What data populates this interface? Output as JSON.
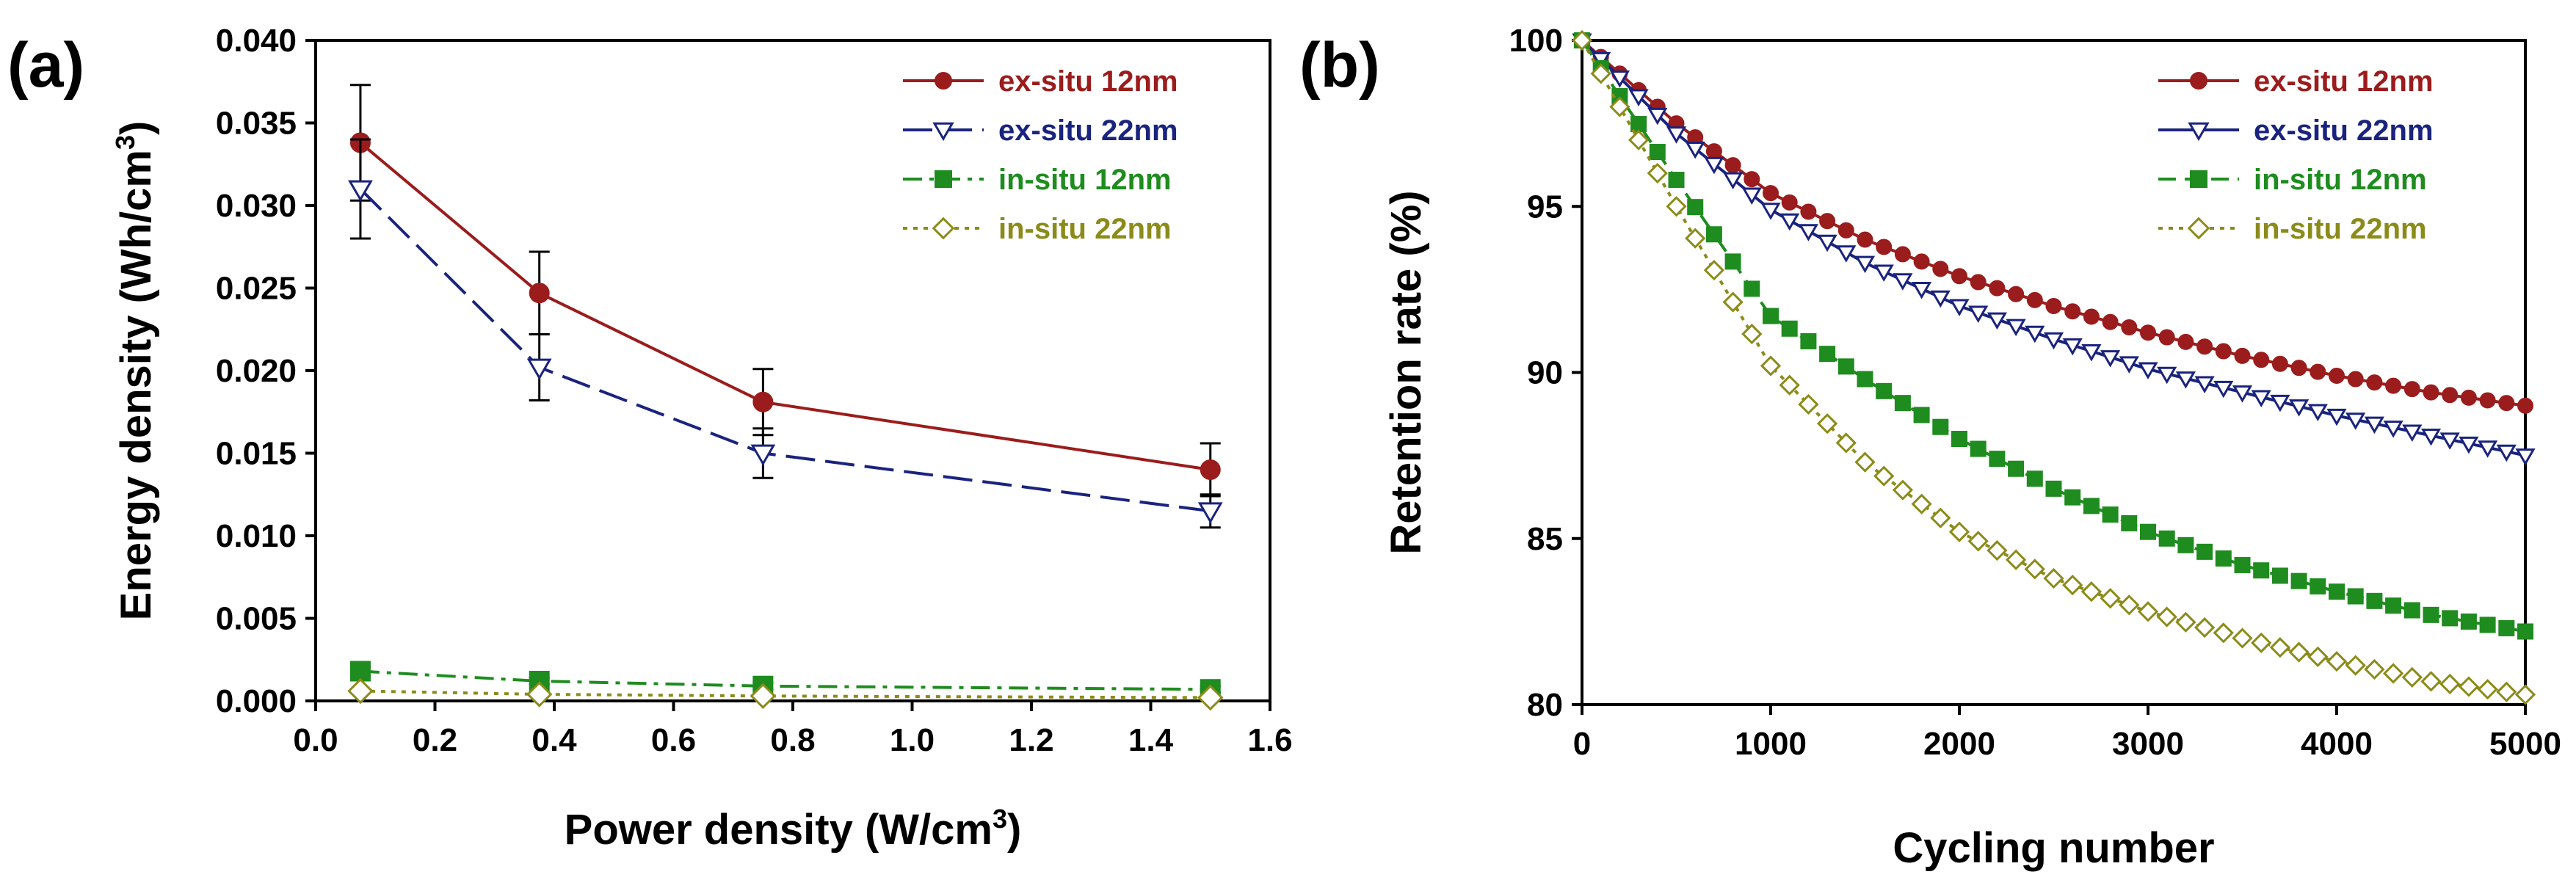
{
  "chart_data": [
    {
      "type": "line",
      "panel_label": "(a)",
      "xlabel": "Power density (W/cm",
      "xlabel_sup": "3",
      "xlabel_end": ")",
      "ylabel": "Energy density (Wh/cm",
      "ylabel_sup": "3",
      "ylabel_end": ")",
      "xlim": [
        0.0,
        1.6
      ],
      "ylim": [
        0.0,
        0.04
      ],
      "xticks": [
        "0.0",
        "0.2",
        "0.4",
        "0.6",
        "0.8",
        "1.0",
        "1.2",
        "1.4",
        "1.6"
      ],
      "yticks": [
        "0.000",
        "0.005",
        "0.010",
        "0.015",
        "0.020",
        "0.025",
        "0.030",
        "0.035",
        "0.040"
      ],
      "legend_position": "top-right",
      "series": [
        {
          "name": "ex-situ 12nm",
          "color": "#9b1c1c",
          "marker": "circle",
          "line": "solid",
          "x": [
            0.075,
            0.375,
            0.75,
            1.5
          ],
          "y": [
            0.0338,
            0.0247,
            0.0181,
            0.014
          ],
          "err": [
            0.0035,
            0.0025,
            0.002,
            0.0016
          ]
        },
        {
          "name": "ex-situ 22nm",
          "color": "#1a237e",
          "marker": "triangle-down-open",
          "line": "long-dash",
          "x": [
            0.075,
            0.375,
            0.75,
            1.5
          ],
          "y": [
            0.031,
            0.0202,
            0.015,
            0.0115
          ],
          "err": [
            0.003,
            0.002,
            0.0015,
            0.001
          ]
        },
        {
          "name": "in-situ 12nm",
          "color": "#1e8c1e",
          "marker": "square",
          "line": "dash-dot",
          "x": [
            0.075,
            0.375,
            0.75,
            1.5
          ],
          "y": [
            0.0018,
            0.0012,
            0.0009,
            0.0007
          ],
          "err": [
            0.0003,
            0.0002,
            0.0002,
            0.0002
          ]
        },
        {
          "name": "in-situ 22nm",
          "color": "#8b8b1a",
          "marker": "diamond-open",
          "line": "dotted",
          "x": [
            0.075,
            0.375,
            0.75,
            1.5
          ],
          "y": [
            0.0006,
            0.0004,
            0.0003,
            0.0002
          ],
          "err": [
            0.0001,
            0.0001,
            0.0001,
            0.0001
          ]
        }
      ]
    },
    {
      "type": "line",
      "panel_label": "(b)",
      "xlabel": "Cycling number",
      "ylabel": "Retention rate (%)",
      "xlim": [
        0,
        5000
      ],
      "ylim": [
        80,
        100
      ],
      "xticks": [
        "0",
        "1000",
        "2000",
        "3000",
        "4000",
        "5000"
      ],
      "yticks": [
        "80",
        "85",
        "90",
        "95",
        "100"
      ],
      "legend_position": "top-right",
      "series": [
        {
          "name": "ex-situ 12nm",
          "color": "#9b1c1c",
          "marker": "circle",
          "line": "solid",
          "x": [
            0,
            500,
            1000,
            1500,
            2000,
            2500,
            3000,
            3500,
            4000,
            4500,
            5000
          ],
          "y": [
            100,
            97.5,
            95.4,
            94.0,
            92.9,
            92.0,
            91.2,
            90.5,
            89.9,
            89.4,
            89.0
          ]
        },
        {
          "name": "ex-situ 22nm",
          "color": "#1a237e",
          "marker": "triangle-down-open",
          "line": "solid",
          "x": [
            0,
            500,
            1000,
            1500,
            2000,
            2500,
            3000,
            3500,
            4000,
            4500,
            5000
          ],
          "y": [
            100,
            97.2,
            94.9,
            93.3,
            92.0,
            91.0,
            90.1,
            89.4,
            88.7,
            88.1,
            87.5
          ]
        },
        {
          "name": "in-situ 12nm",
          "color": "#1e8c1e",
          "marker": "square",
          "line": "dash",
          "x": [
            0,
            500,
            1000,
            1500,
            2000,
            2500,
            3000,
            3500,
            4000,
            4500,
            5000
          ],
          "y": [
            100,
            95.8,
            91.7,
            89.8,
            88.0,
            86.5,
            85.2,
            84.2,
            83.4,
            82.7,
            82.2
          ]
        },
        {
          "name": "in-situ 22nm",
          "color": "#8b8b1a",
          "marker": "diamond-open",
          "line": "dotted",
          "x": [
            0,
            500,
            1000,
            1500,
            2000,
            2500,
            3000,
            3500,
            4000,
            4500,
            5000
          ],
          "y": [
            100,
            95.0,
            90.2,
            87.3,
            85.2,
            83.8,
            82.8,
            82.0,
            81.3,
            80.7,
            80.3
          ]
        }
      ]
    }
  ]
}
